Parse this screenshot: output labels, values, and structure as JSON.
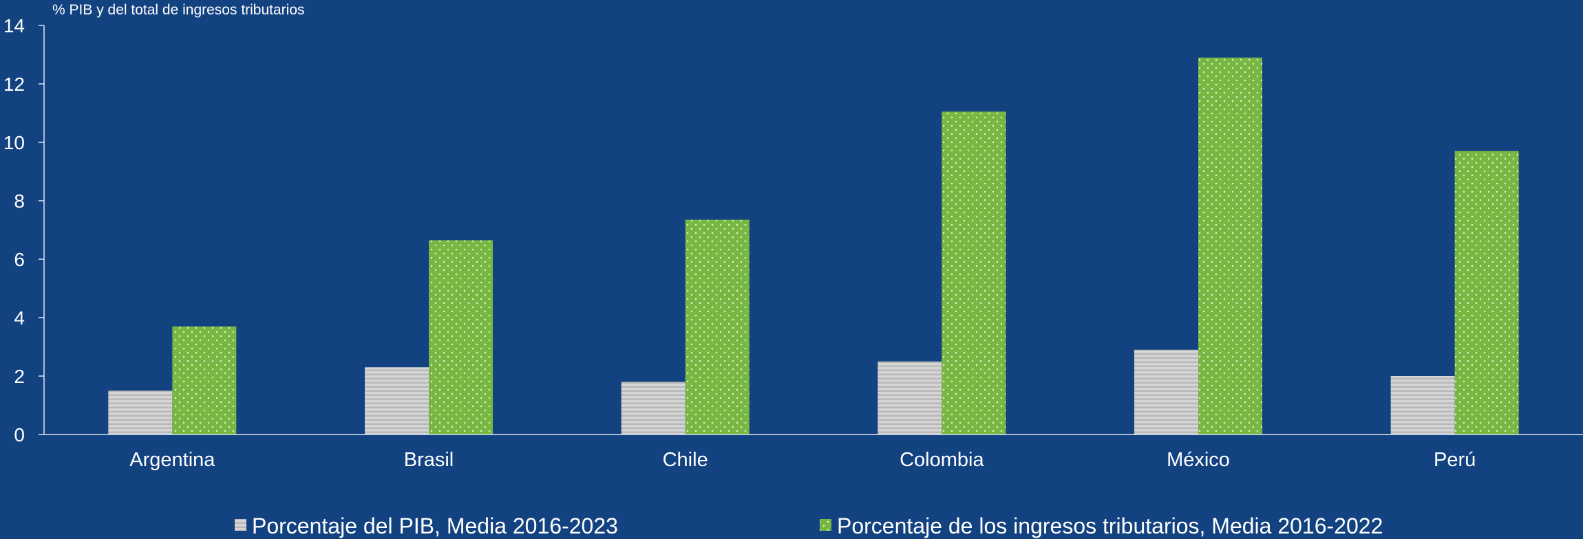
{
  "chart_data": {
    "type": "bar",
    "unit_label": "% PIB y del total de ingresos tributarios",
    "categories": [
      "Argentina",
      "Brasil",
      "Chile",
      "Colombia",
      "México",
      "Perú"
    ],
    "series": [
      {
        "name": "Porcentaje del PIB, Media 2016-2023",
        "values": [
          1.5,
          2.3,
          1.8,
          2.5,
          2.9,
          2.0
        ],
        "color": "#d2d2d2",
        "pattern": "horizontal-stripes"
      },
      {
        "name": "Porcentaje de los ingresos tributarios, Media 2016-2022",
        "values": [
          3.7,
          6.65,
          7.35,
          11.05,
          12.9,
          9.7
        ],
        "color": "#78b842",
        "pattern": "dots"
      }
    ],
    "ylim": [
      0,
      14
    ],
    "yticks": [
      0,
      2,
      4,
      6,
      8,
      10,
      12,
      14
    ],
    "grid": false,
    "legend_position": "bottom"
  },
  "colors": {
    "background": "#134280",
    "axis": "#dfe6f0",
    "text": "#ffffff"
  }
}
